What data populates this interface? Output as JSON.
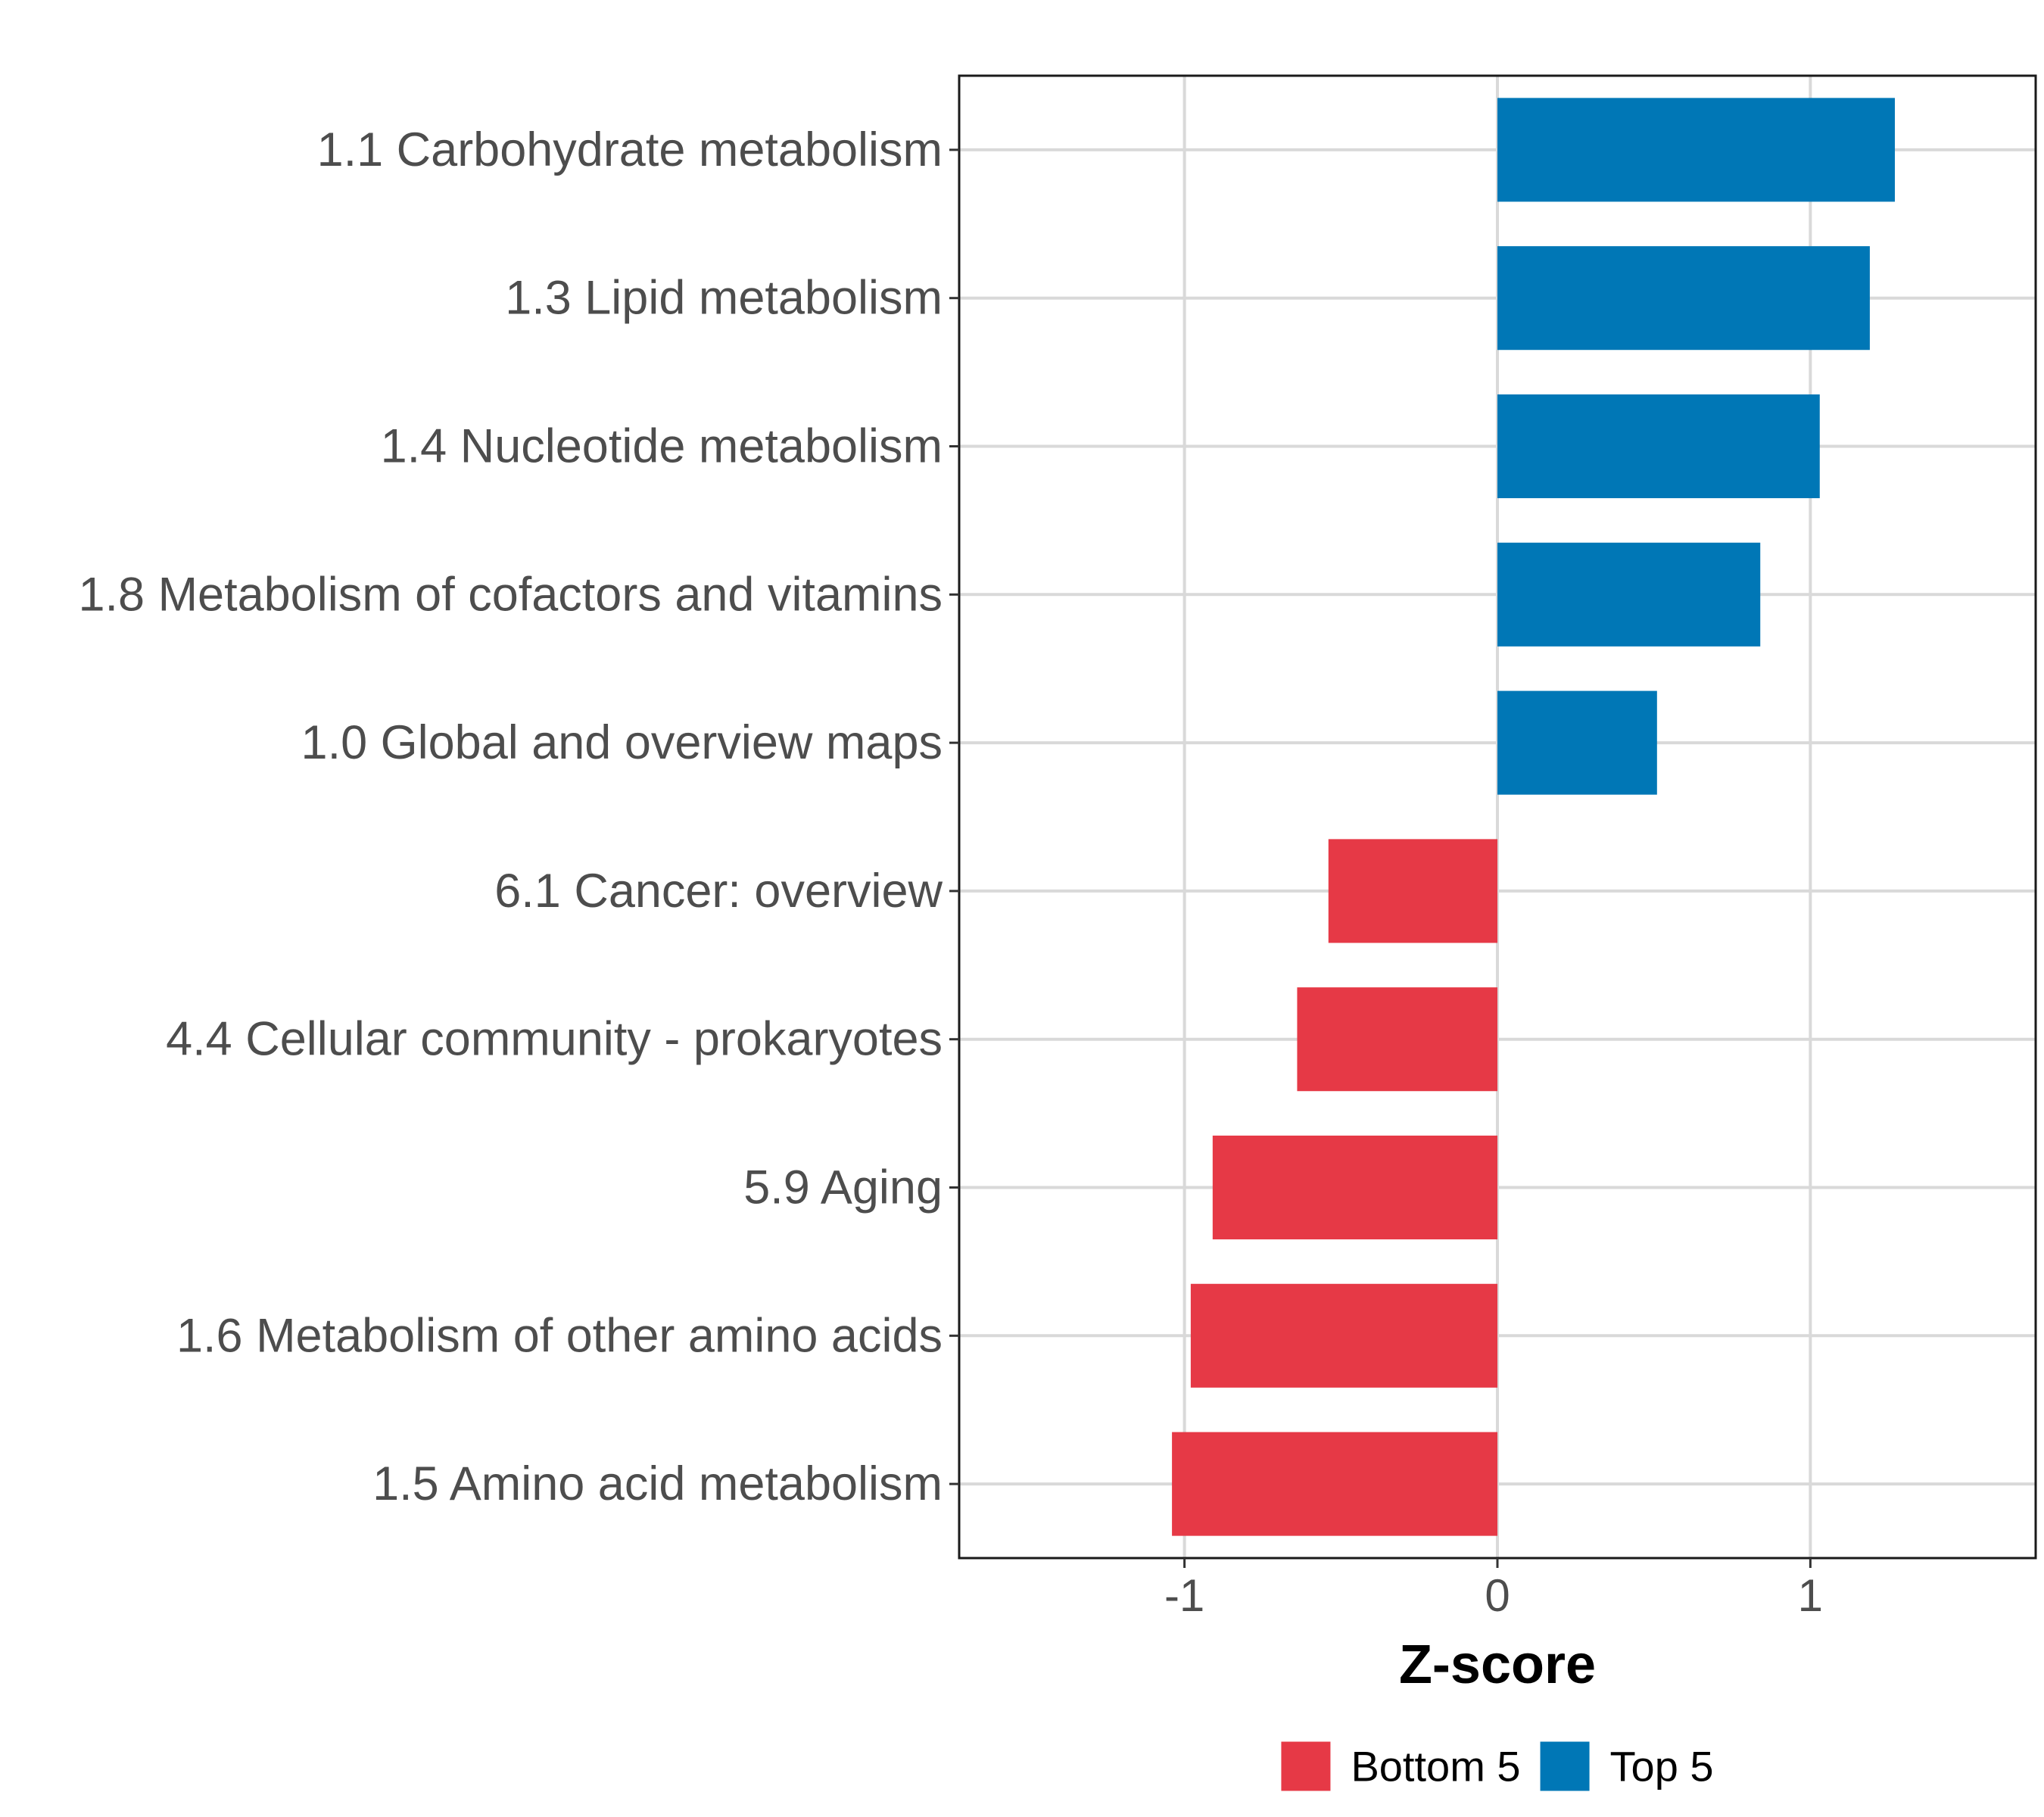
{
  "chart_data": {
    "type": "bar",
    "orientation": "horizontal",
    "categories": [
      "1.1 Carbohydrate metabolism",
      "1.3 Lipid metabolism",
      "1.4 Nucleotide metabolism",
      "1.8 Metabolism of cofactors and vitamins",
      "1.0 Global and overview maps",
      "6.1 Cancer: overview",
      "4.4 Cellular community - prokaryotes",
      "5.9 Aging",
      "1.6 Metabolism of other amino acids",
      "1.5 Amino acid metabolism"
    ],
    "values": [
      1.27,
      1.19,
      1.03,
      0.84,
      0.51,
      -0.54,
      -0.64,
      -0.91,
      -0.98,
      -1.04
    ],
    "groups": [
      "Top 5",
      "Top 5",
      "Top 5",
      "Top 5",
      "Top 5",
      "Bottom 5",
      "Bottom 5",
      "Bottom 5",
      "Bottom 5",
      "Bottom 5"
    ],
    "title": "",
    "xlabel": "Z-score",
    "ylabel": "",
    "xlim": [
      -1.72,
      1.72
    ],
    "xticks": [
      -1,
      0,
      1
    ],
    "xtick_labels": [
      "-1",
      "0",
      "1"
    ],
    "grid": true,
    "legend": {
      "position": "bottom",
      "entries": [
        {
          "label": "Bottom 5",
          "color": "#e63946"
        },
        {
          "label": "Top 5",
          "color": "#0077b6"
        }
      ]
    }
  }
}
